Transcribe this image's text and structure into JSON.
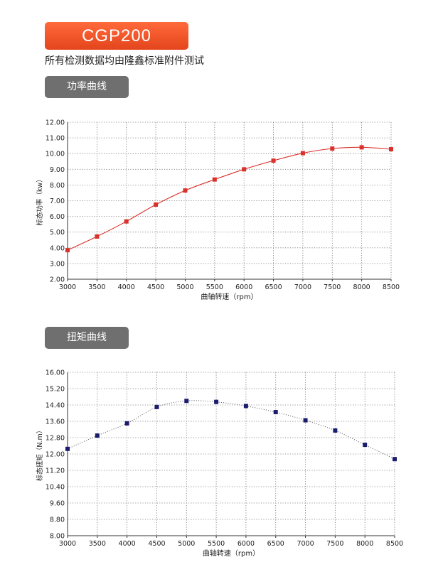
{
  "header": {
    "model": "CGP200",
    "subtitle": "所有检测数据均由隆鑫标准附件测试"
  },
  "sections": [
    {
      "tab_label": "功率曲线"
    },
    {
      "tab_label": "扭矩曲线"
    }
  ],
  "chart_data": [
    {
      "type": "line",
      "title": "",
      "xlabel": "曲轴转速（rpm）",
      "ylabel": "标态功率（kw）",
      "x": [
        3000,
        3500,
        4000,
        4500,
        5000,
        5500,
        6000,
        6500,
        7000,
        7500,
        8000,
        8500
      ],
      "xlim": [
        3000,
        8500
      ],
      "ylim": [
        2.0,
        12.0
      ],
      "y_ticks": [
        "2.00",
        "3.00",
        "4.00",
        "5.00",
        "6.00",
        "7.00",
        "8.00",
        "9.00",
        "10.00",
        "11.00",
        "12.00"
      ],
      "x_ticks": [
        "3000",
        "3500",
        "4000",
        "4500",
        "5000",
        "5500",
        "6000",
        "6500",
        "7000",
        "7500",
        "8000",
        "8500"
      ],
      "grid": true,
      "line_style": "solid",
      "color": "#d9312b",
      "marker_color": "#d9312b",
      "series": [
        {
          "values": [
            3.85,
            4.72,
            5.68,
            6.75,
            7.65,
            8.35,
            9.0,
            9.55,
            10.03,
            10.32,
            10.4,
            10.28
          ]
        }
      ]
    },
    {
      "type": "line",
      "title": "",
      "xlabel": "曲轴转速（rpm）",
      "ylabel": "标态扭矩（N.m）",
      "x": [
        3000,
        3500,
        4000,
        4500,
        5000,
        5500,
        6000,
        6500,
        7000,
        7500,
        8000,
        8500
      ],
      "xlim": [
        3000,
        8500
      ],
      "ylim": [
        8.0,
        16.0
      ],
      "y_ticks": [
        "8.00",
        "8.80",
        "9.60",
        "10.40",
        "11.20",
        "12.00",
        "12.80",
        "13.60",
        "14.40",
        "15.20",
        "16.00"
      ],
      "x_ticks": [
        "3000",
        "3500",
        "4000",
        "4500",
        "5000",
        "5500",
        "6000",
        "6500",
        "7000",
        "7500",
        "8000",
        "8500"
      ],
      "grid": true,
      "line_style": "dotted",
      "color": "#555555",
      "marker_color": "#1c1c6e",
      "series": [
        {
          "values": [
            12.25,
            12.9,
            13.5,
            14.3,
            14.6,
            14.55,
            14.35,
            14.05,
            13.65,
            13.15,
            12.45,
            11.75
          ]
        }
      ]
    }
  ]
}
